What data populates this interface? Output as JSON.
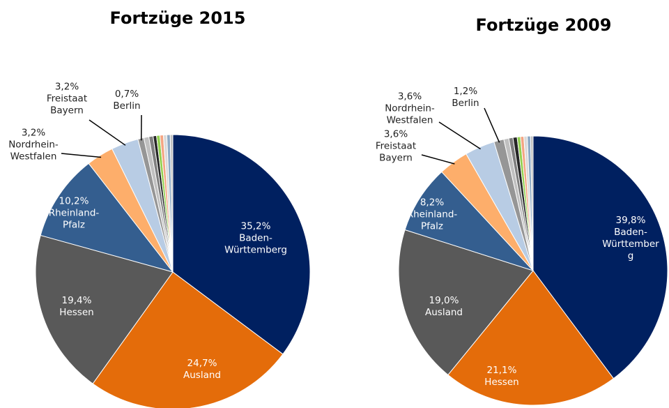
{
  "chart_data": [
    {
      "type": "pie",
      "title": "Fortzüge 2015",
      "categories": [
        "Baden-Württemberg",
        "Ausland",
        "Hessen",
        "Rheinland-Pfalz",
        "Nordrhein-Westfalen",
        "Freistaat Bayern",
        "Berlin",
        null,
        null,
        null,
        null,
        null,
        null,
        null,
        null
      ],
      "values": [
        35.2,
        24.7,
        19.4,
        10.2,
        3.2,
        3.2,
        0.7,
        0.6,
        0.5,
        0.4,
        0.4,
        0.4,
        0.4,
        0.4,
        0.3
      ],
      "value_labels": [
        "35,2%",
        "24,7%",
        "19,4%",
        "10,2%",
        "3,2%",
        "3,2%",
        "0,7%",
        null,
        null,
        null,
        null,
        null,
        null,
        null,
        null
      ],
      "colors": [
        "#002060",
        "#e46c0a",
        "#595959",
        "#345e8f",
        "#fdae6b",
        "#b8cce4",
        "#969696",
        "#c0c0c0",
        "#7f7f7f",
        "#262626",
        "#92d050",
        "#f4a582",
        "#d9d9d9",
        "#8da9c4",
        "#bfbfbf"
      ]
    },
    {
      "type": "pie",
      "title": "Fortzüge 2009",
      "categories": [
        "Baden-Württemberg",
        "Hessen",
        "Ausland",
        "Rheinland-Pfalz",
        "Freistaat Bayern",
        "Nordrhein-Westfalen",
        "Berlin",
        null,
        null,
        null,
        null,
        null,
        null,
        null,
        null
      ],
      "values": [
        39.8,
        21.1,
        19.0,
        8.2,
        3.6,
        3.6,
        1.2,
        0.6,
        0.5,
        0.5,
        0.4,
        0.4,
        0.4,
        0.4,
        0.3
      ],
      "value_labels": [
        "39,8%",
        "21,1%",
        "19,0%",
        "8,2%",
        "3,6%",
        "3,6%",
        "1,2%",
        null,
        null,
        null,
        null,
        null,
        null,
        null,
        null
      ],
      "colors": [
        "#002060",
        "#e46c0a",
        "#595959",
        "#345e8f",
        "#fdae6b",
        "#b8cce4",
        "#969696",
        "#c0c0c0",
        "#7f7f7f",
        "#262626",
        "#92d050",
        "#f4a582",
        "#d9d9d9",
        "#8da9c4",
        "#bfbfbf"
      ]
    }
  ]
}
